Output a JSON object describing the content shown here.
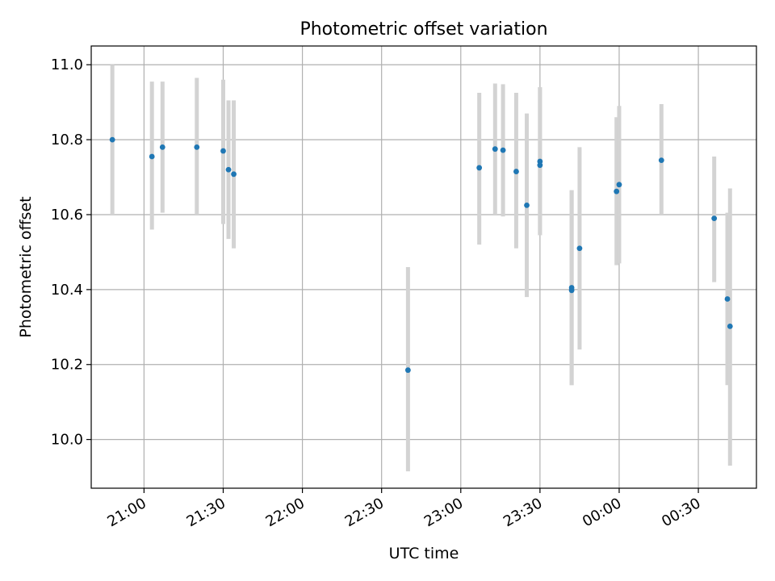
{
  "chart_data": {
    "type": "scatter",
    "title": "Photometric offset variation",
    "xlabel": "UTC time",
    "ylabel": "Photometric offset",
    "x_axis_kind": "time",
    "xlim": [
      "20:40",
      "00:52"
    ],
    "ylim": [
      9.87,
      11.05
    ],
    "grid": true,
    "xticks": [
      "21:00",
      "21:30",
      "22:00",
      "22:30",
      "23:00",
      "23:30",
      "00:00",
      "00:30"
    ],
    "yticks": [
      "10.0",
      "10.2",
      "10.4",
      "10.6",
      "10.8",
      "11.0"
    ],
    "marker_color": "#1f77b4",
    "errorbar_color": "#d3d3d3",
    "points": [
      {
        "x": "20:48",
        "y": 10.8,
        "ylow": 10.6,
        "yhigh": 11.0
      },
      {
        "x": "21:03",
        "y": 10.755,
        "ylow": 10.56,
        "yhigh": 10.955
      },
      {
        "x": "21:07",
        "y": 10.78,
        "ylow": 10.605,
        "yhigh": 10.955
      },
      {
        "x": "21:20",
        "y": 10.78,
        "ylow": 10.6,
        "yhigh": 10.965
      },
      {
        "x": "21:30",
        "y": 10.77,
        "ylow": 10.575,
        "yhigh": 10.96
      },
      {
        "x": "21:32",
        "y": 10.72,
        "ylow": 10.535,
        "yhigh": 10.905
      },
      {
        "x": "21:34",
        "y": 10.708,
        "ylow": 10.51,
        "yhigh": 10.905
      },
      {
        "x": "22:40",
        "y": 10.185,
        "ylow": 9.915,
        "yhigh": 10.46
      },
      {
        "x": "23:07",
        "y": 10.725,
        "ylow": 10.52,
        "yhigh": 10.925
      },
      {
        "x": "23:13",
        "y": 10.775,
        "ylow": 10.6,
        "yhigh": 10.95
      },
      {
        "x": "23:16",
        "y": 10.772,
        "ylow": 10.595,
        "yhigh": 10.948
      },
      {
        "x": "23:21",
        "y": 10.715,
        "ylow": 10.51,
        "yhigh": 10.925
      },
      {
        "x": "23:25",
        "y": 10.625,
        "ylow": 10.38,
        "yhigh": 10.87
      },
      {
        "x": "23:30",
        "y": 10.732,
        "ylow": 10.545,
        "yhigh": 10.94
      },
      {
        "x": "23:30",
        "y": 10.742,
        "ylow": 10.545,
        "yhigh": 10.94
      },
      {
        "x": "23:42",
        "y": 10.398,
        "ylow": 10.145,
        "yhigh": 10.665
      },
      {
        "x": "23:42",
        "y": 10.405,
        "ylow": 10.145,
        "yhigh": 10.665
      },
      {
        "x": "23:45",
        "y": 10.51,
        "ylow": 10.24,
        "yhigh": 10.78
      },
      {
        "x": "23:59",
        "y": 10.662,
        "ylow": 10.465,
        "yhigh": 10.86
      },
      {
        "x": "00:00",
        "y": 10.68,
        "ylow": 10.47,
        "yhigh": 10.89
      },
      {
        "x": "00:16",
        "y": 10.745,
        "ylow": 10.6,
        "yhigh": 10.895
      },
      {
        "x": "00:36",
        "y": 10.59,
        "ylow": 10.42,
        "yhigh": 10.755
      },
      {
        "x": "00:41",
        "y": 10.375,
        "ylow": 10.145,
        "yhigh": 10.605
      },
      {
        "x": "00:42",
        "y": 10.302,
        "ylow": 9.93,
        "yhigh": 10.67
      }
    ]
  }
}
